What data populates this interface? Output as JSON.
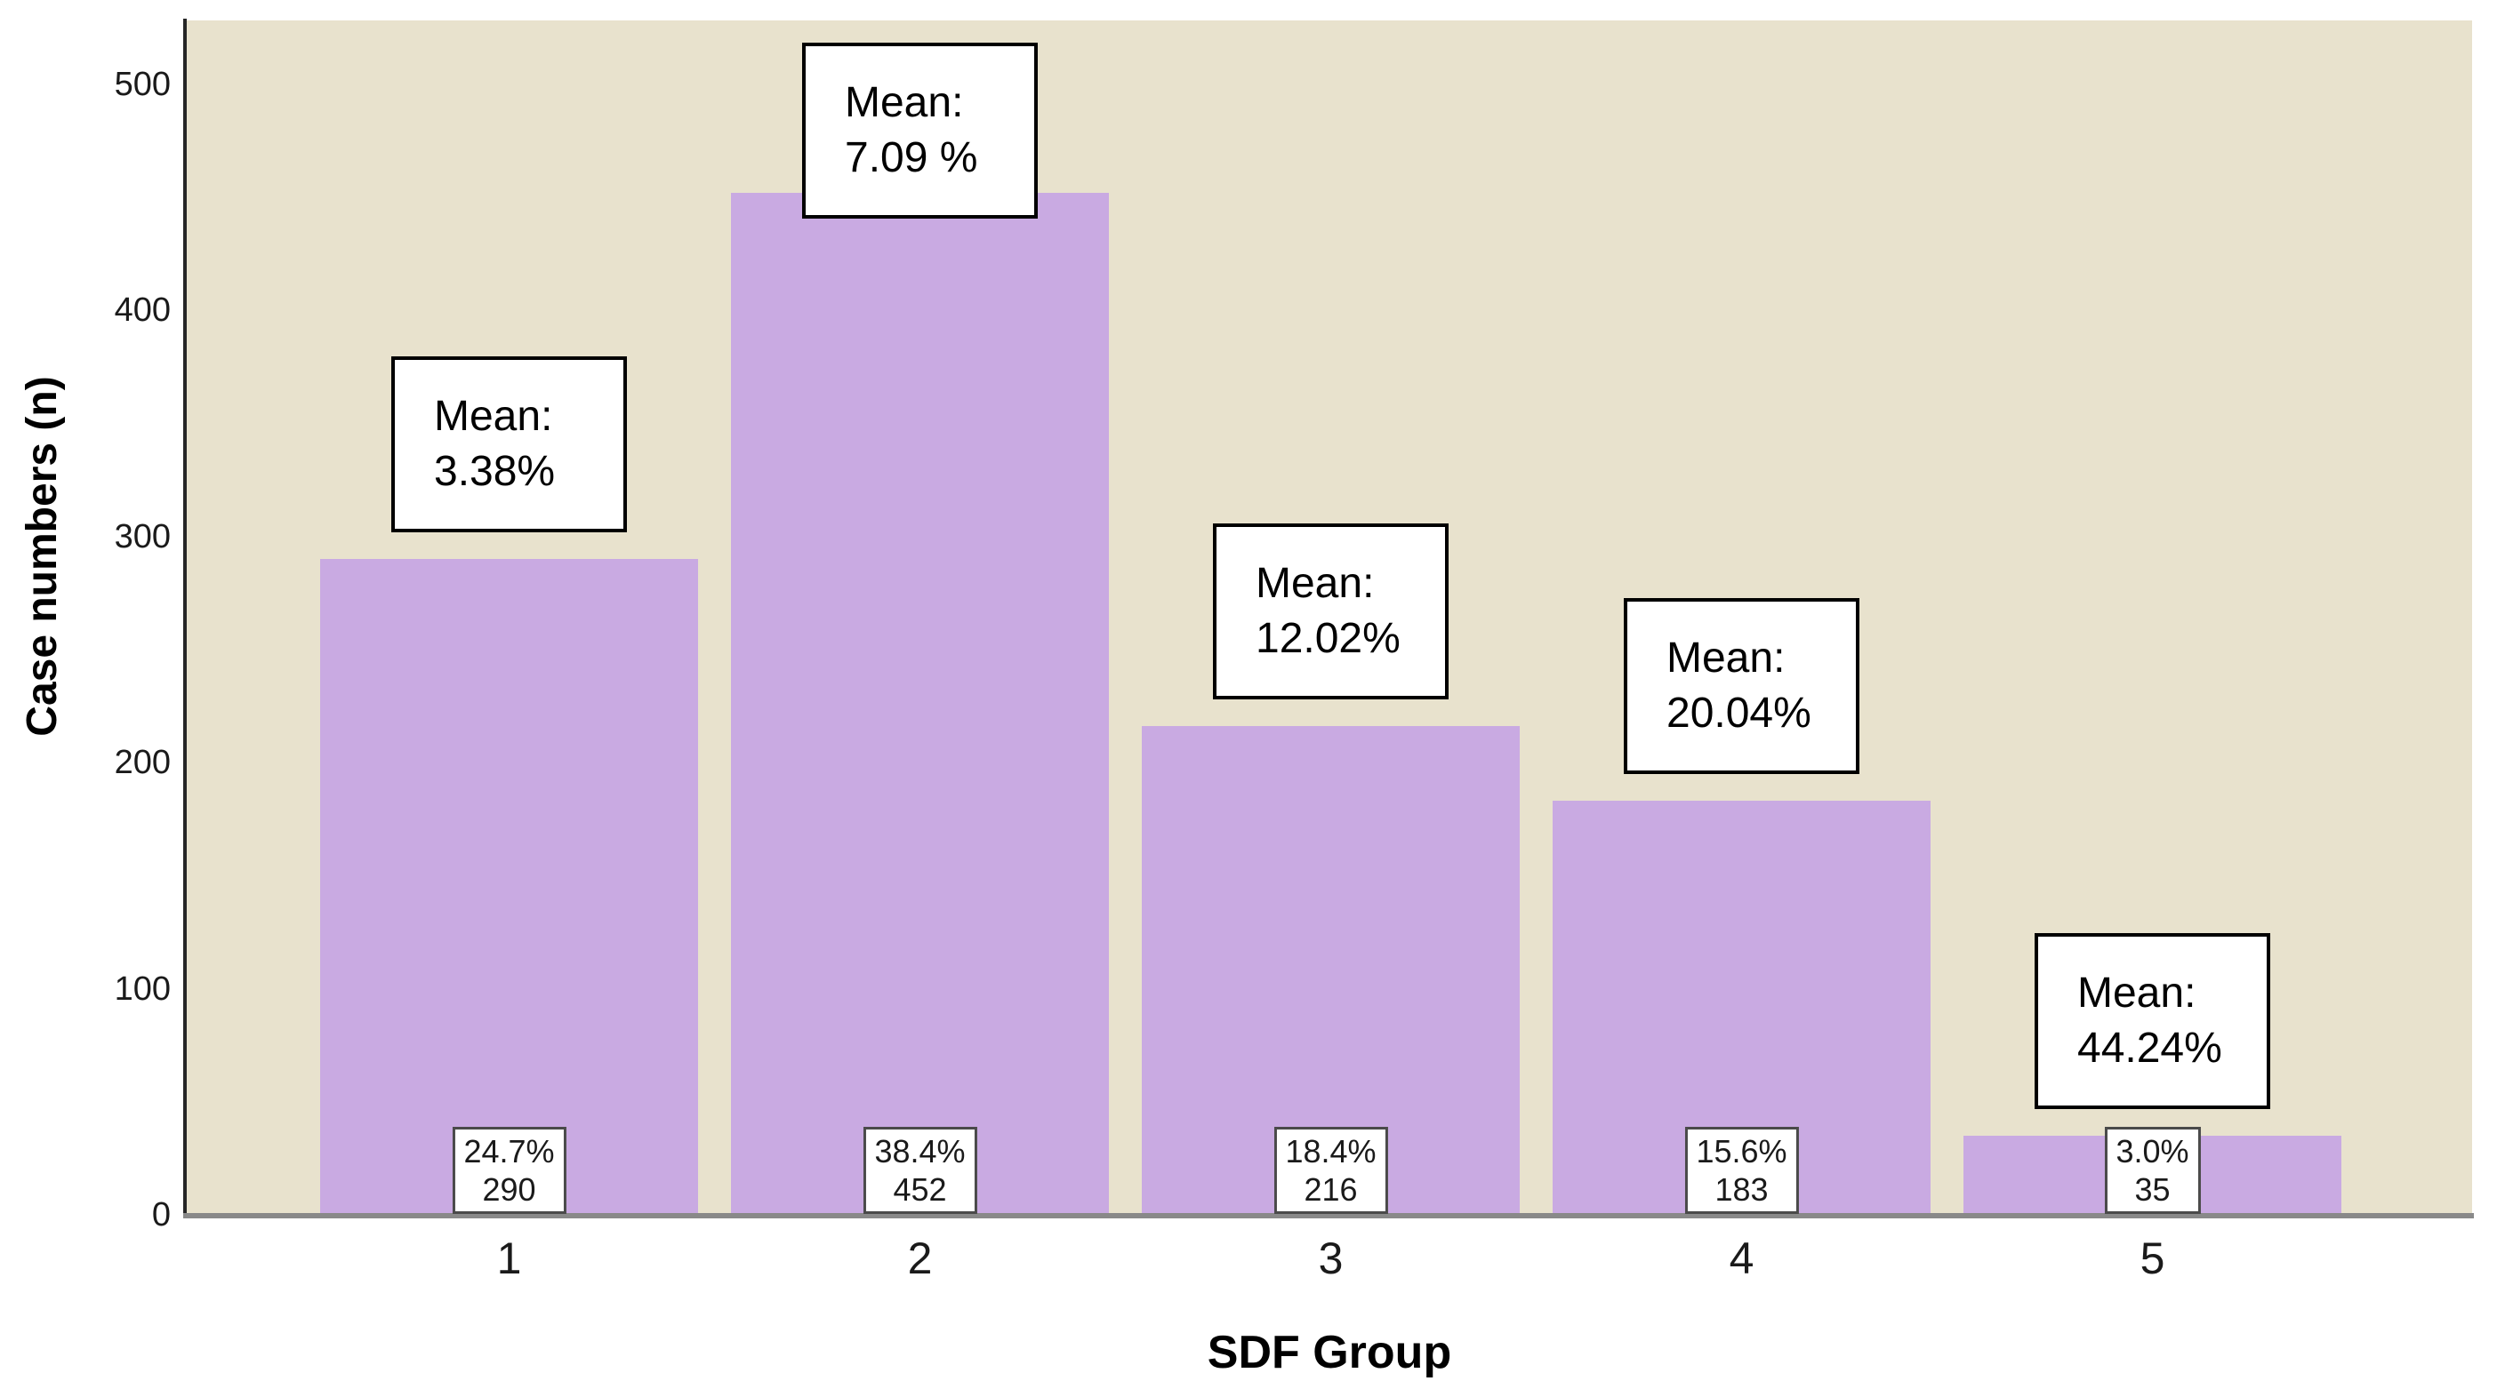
{
  "chart_data": {
    "type": "bar",
    "title": "",
    "xlabel": "SDF Group",
    "ylabel": "Case numbers (n)",
    "categories": [
      "1",
      "2",
      "3",
      "4",
      "5"
    ],
    "values": [
      290,
      452,
      216,
      183,
      35
    ],
    "series": [
      {
        "name": "Case numbers",
        "values": [
          290,
          452,
          216,
          183,
          35
        ]
      }
    ],
    "bar_percent_labels": [
      "24.7%",
      "38.4%",
      "18.4%",
      "15.6%",
      "3.0%"
    ],
    "bar_count_labels": [
      "290",
      "452",
      "216",
      "183",
      "35"
    ],
    "mean_annotations": [
      {
        "line1": "Mean:",
        "line2": "3.38%"
      },
      {
        "line1": "Mean:",
        "line2": "7.09 %"
      },
      {
        "line1": "Mean:",
        "line2": "12.02%"
      },
      {
        "line1": "Mean:",
        "line2": "20.04%"
      },
      {
        "line1": "Mean:",
        "line2": "44.24%"
      }
    ],
    "yticks": [
      0,
      100,
      200,
      300,
      400,
      500
    ],
    "ylim": [
      0,
      528
    ],
    "grid": false,
    "legend": "none",
    "colors": {
      "bar_fill": "#c9aae2",
      "plot_background": "#e8e2cd",
      "annotation_background": "#ffffff",
      "annotation_border": "#000000",
      "count_box_border": "#4a4a4a",
      "baseline": "#898989",
      "axis_line": "#262626",
      "page_background": "#ffffff",
      "text": "#000000"
    }
  }
}
